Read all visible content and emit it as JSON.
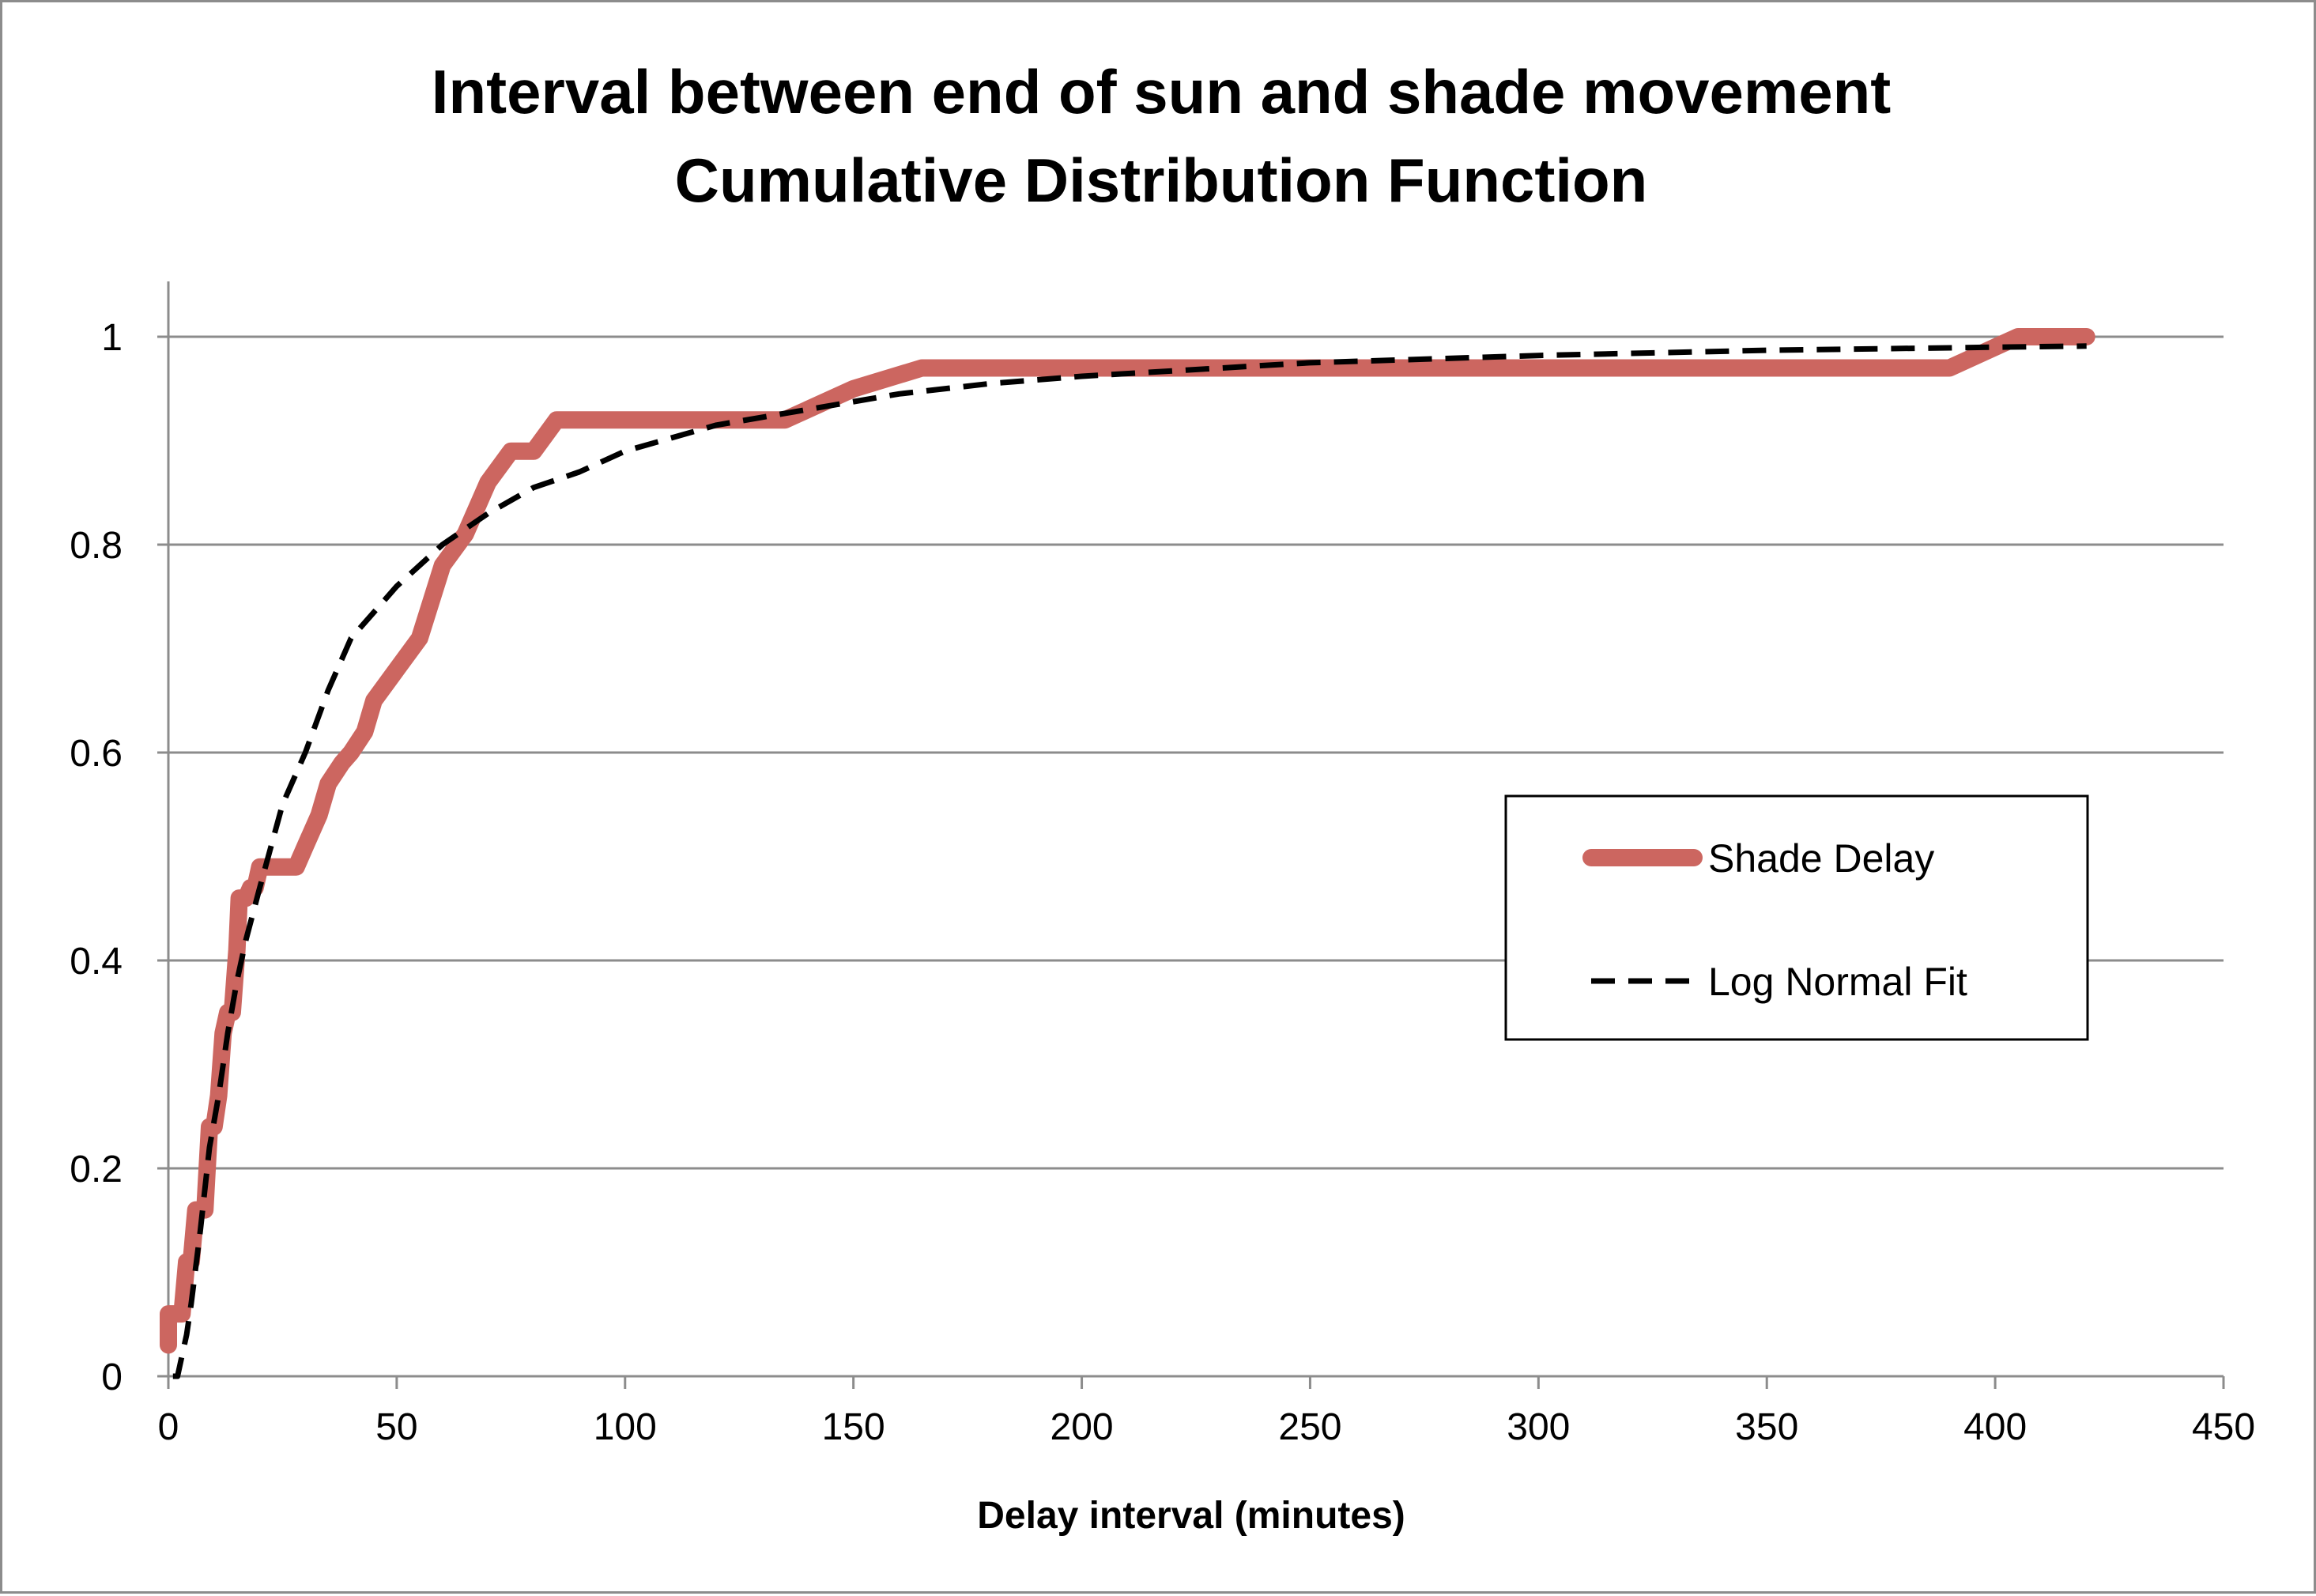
{
  "chart_data": {
    "type": "line",
    "title": "Interval between end of sun and shade movement",
    "subtitle": "Cumulative Distribution Function",
    "xlabel": "Delay interval (minutes)",
    "ylabel": "",
    "xlim": [
      0,
      450
    ],
    "ylim": [
      0,
      1
    ],
    "x_ticks": [
      0,
      50,
      100,
      150,
      200,
      250,
      300,
      350,
      400,
      450
    ],
    "y_ticks": [
      0,
      0.2,
      0.4,
      0.6,
      0.8,
      1
    ],
    "y_tick_labels": [
      "0",
      "0.2",
      "0.4",
      "0.6",
      "0.8",
      "1"
    ],
    "grid": "horizontal",
    "legend_position": "right",
    "series": [
      {
        "name": "Shade Delay",
        "color": "#cc6660",
        "style": "solid-thick",
        "x": [
          0,
          0,
          3,
          4,
          5,
          6,
          7,
          8,
          9,
          10,
          11,
          12,
          13,
          14,
          15,
          15.5,
          16,
          17,
          18,
          19,
          20,
          22,
          25,
          28,
          30,
          33,
          35,
          38,
          40,
          43,
          45,
          50,
          55,
          60,
          65,
          70,
          75,
          80,
          85,
          90,
          100,
          120,
          135,
          150,
          165,
          200,
          250,
          300,
          350,
          390,
          405,
          420
        ],
        "y": [
          0.03,
          0.06,
          0.06,
          0.11,
          0.11,
          0.16,
          0.16,
          0.16,
          0.24,
          0.24,
          0.27,
          0.33,
          0.35,
          0.35,
          0.41,
          0.46,
          0.46,
          0.46,
          0.47,
          0.47,
          0.49,
          0.49,
          0.49,
          0.49,
          0.51,
          0.54,
          0.57,
          0.59,
          0.6,
          0.62,
          0.65,
          0.68,
          0.71,
          0.78,
          0.81,
          0.86,
          0.89,
          0.89,
          0.92,
          0.92,
          0.92,
          0.92,
          0.92,
          0.95,
          0.97,
          0.97,
          0.97,
          0.97,
          0.97,
          0.97,
          1.0,
          1.0
        ]
      },
      {
        "name": "Log Normal Fit",
        "color": "#000000",
        "style": "dashed",
        "x": [
          1,
          2,
          3,
          4,
          5,
          7,
          9,
          11,
          13,
          15,
          17,
          20,
          25,
          30,
          35,
          40,
          50,
          60,
          70,
          80,
          90,
          100,
          120,
          140,
          160,
          180,
          200,
          250,
          300,
          350,
          400,
          420
        ],
        "y": [
          0.0,
          0.0,
          0.02,
          0.04,
          0.07,
          0.14,
          0.22,
          0.27,
          0.33,
          0.38,
          0.42,
          0.47,
          0.55,
          0.6,
          0.66,
          0.71,
          0.76,
          0.8,
          0.83,
          0.855,
          0.87,
          0.89,
          0.915,
          0.93,
          0.945,
          0.955,
          0.962,
          0.975,
          0.982,
          0.987,
          0.99,
          0.991
        ]
      }
    ]
  }
}
